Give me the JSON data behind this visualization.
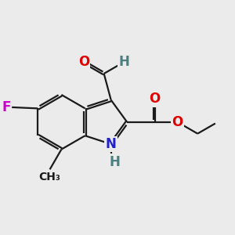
{
  "bg_color": "#ebebeb",
  "bond_color": "#1a1a1a",
  "bond_width": 1.6,
  "dbo": 0.055,
  "atom_colors": {
    "O": "#e00000",
    "N": "#2222cc",
    "F": "#cc00cc",
    "H": "#4a8080",
    "C": "#1a1a1a"
  },
  "font_size": 12,
  "font_size_sub": 10
}
